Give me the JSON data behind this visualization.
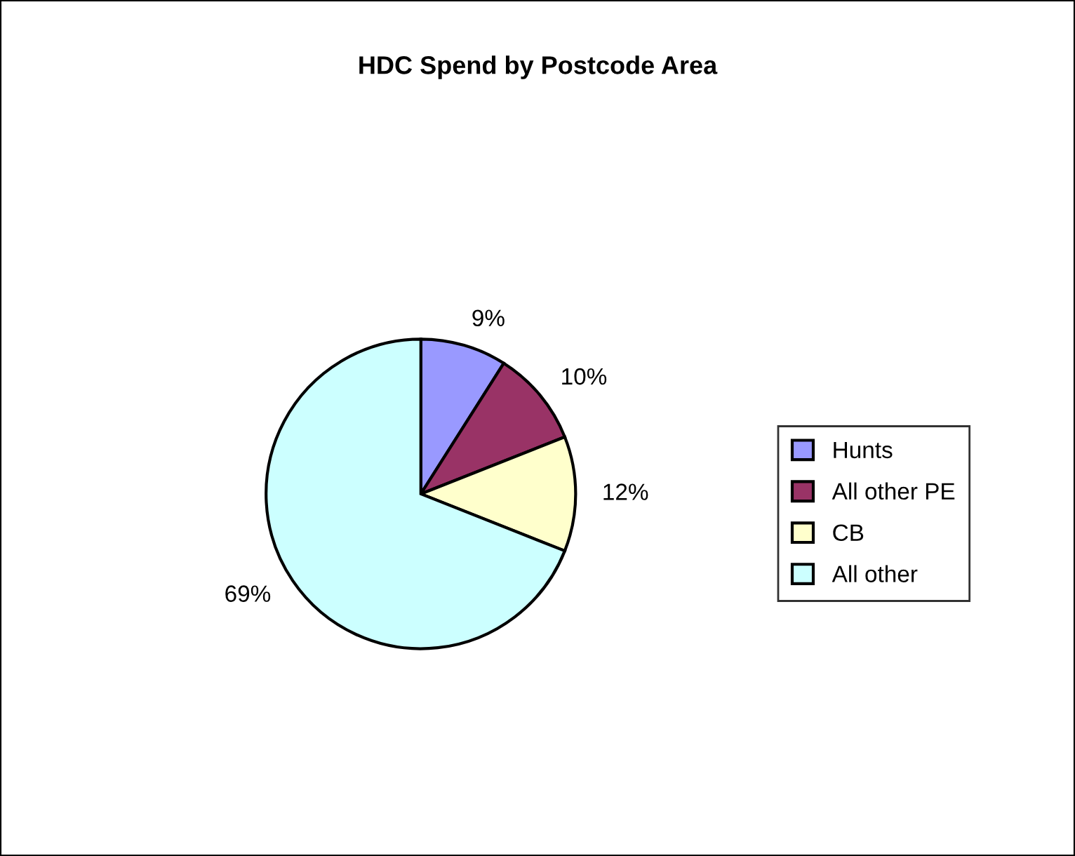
{
  "chart_data": {
    "type": "pie",
    "title": "HDC Spend by Postcode Area",
    "categories": [
      "Hunts",
      "All other PE",
      "CB",
      "All other"
    ],
    "values": [
      9,
      10,
      12,
      69
    ],
    "colors": [
      "#9999ff",
      "#993366",
      "#ffffcc",
      "#ccffff"
    ],
    "value_labels": [
      "9%",
      "10%",
      "12%",
      "69%"
    ],
    "legend": "right"
  }
}
